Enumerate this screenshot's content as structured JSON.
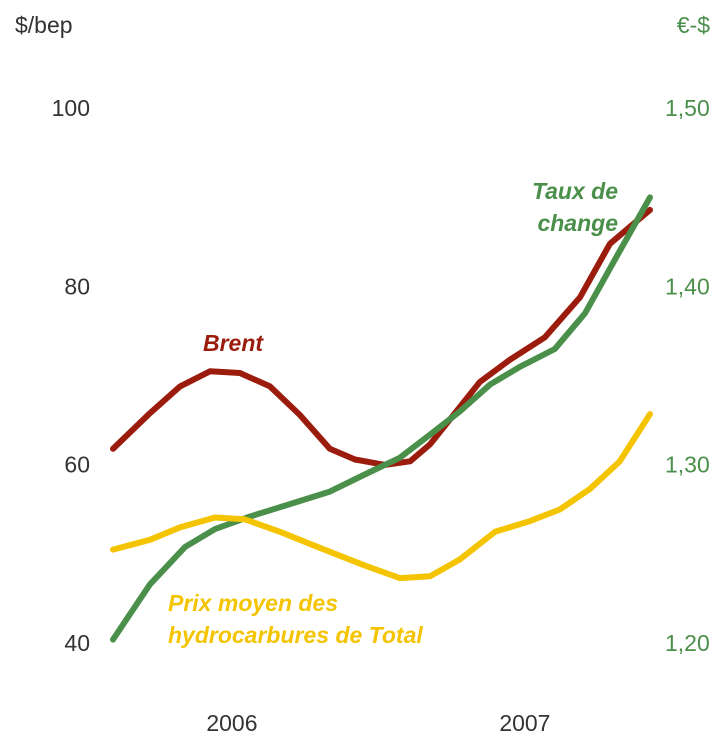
{
  "chart_data": {
    "type": "line",
    "y_label": "$/bep",
    "y2_label": "€-$",
    "xlim": [
      2005.594,
      2007.427
    ],
    "xticks": [
      2006,
      2007
    ],
    "ylim": [
      40,
      100
    ],
    "yticks": [
      40,
      60,
      80,
      100
    ],
    "y2lim": [
      1.2,
      1.5
    ],
    "y2ticks": [
      {
        "value": 1.2,
        "label": "1,20"
      },
      {
        "value": 1.3,
        "label": "1,30"
      },
      {
        "value": 1.4,
        "label": "1,40"
      },
      {
        "value": 1.5,
        "label": "1,50"
      }
    ],
    "grid": false,
    "series": [
      {
        "name": "Brent",
        "color": "#9b1c0c",
        "x": [
          2005.594,
          2005.72,
          2005.823,
          2005.925,
          2006.027,
          2006.13,
          2006.232,
          2006.334,
          2006.42,
          2006.522,
          2006.608,
          2006.676,
          2006.761,
          2006.846,
          2006.949,
          2007.068,
          2007.188,
          2007.29,
          2007.427
        ],
        "values": [
          62,
          66,
          69,
          70.7,
          70.5,
          69,
          65.8,
          62,
          60.8,
          60.2,
          60.6,
          62.5,
          66,
          69.5,
          72,
          74.5,
          79,
          85,
          88.8
        ]
      },
      {
        "name": "Taux de change",
        "color": "#4a8f4a",
        "axis": "y2",
        "x": [
          2005.594,
          2005.72,
          2005.84,
          2005.942,
          2006.061,
          2006.198,
          2006.334,
          2006.471,
          2006.573,
          2006.676,
          2006.778,
          2006.881,
          2006.983,
          2007.102,
          2007.205,
          2007.307,
          2007.427
        ],
        "values": [
          1.203,
          1.234,
          1.255,
          1.265,
          1.272,
          1.279,
          1.286,
          1.297,
          1.305,
          1.318,
          1.331,
          1.346,
          1.356,
          1.366,
          1.386,
          1.416,
          1.451
        ]
      },
      {
        "name": "Prix moyen des hydrocarbures de Total",
        "color": "#f5c400",
        "x": [
          2005.594,
          2005.72,
          2005.823,
          2005.942,
          2006.044,
          2006.164,
          2006.3,
          2006.454,
          2006.573,
          2006.676,
          2006.778,
          2006.898,
          2007.017,
          2007.119,
          2007.222,
          2007.324,
          2007.427
        ],
        "values": [
          50.7,
          51.8,
          53.2,
          54.3,
          54.1,
          52.7,
          50.9,
          48.9,
          47.5,
          47.7,
          49.6,
          52.7,
          53.9,
          55.2,
          57.5,
          60.6,
          65.9
        ]
      }
    ],
    "annotations": [
      [
        "Brent"
      ],
      [
        "Taux de",
        "change"
      ],
      [
        "Prix moyen des",
        "hydrocarbures de Total"
      ]
    ]
  }
}
